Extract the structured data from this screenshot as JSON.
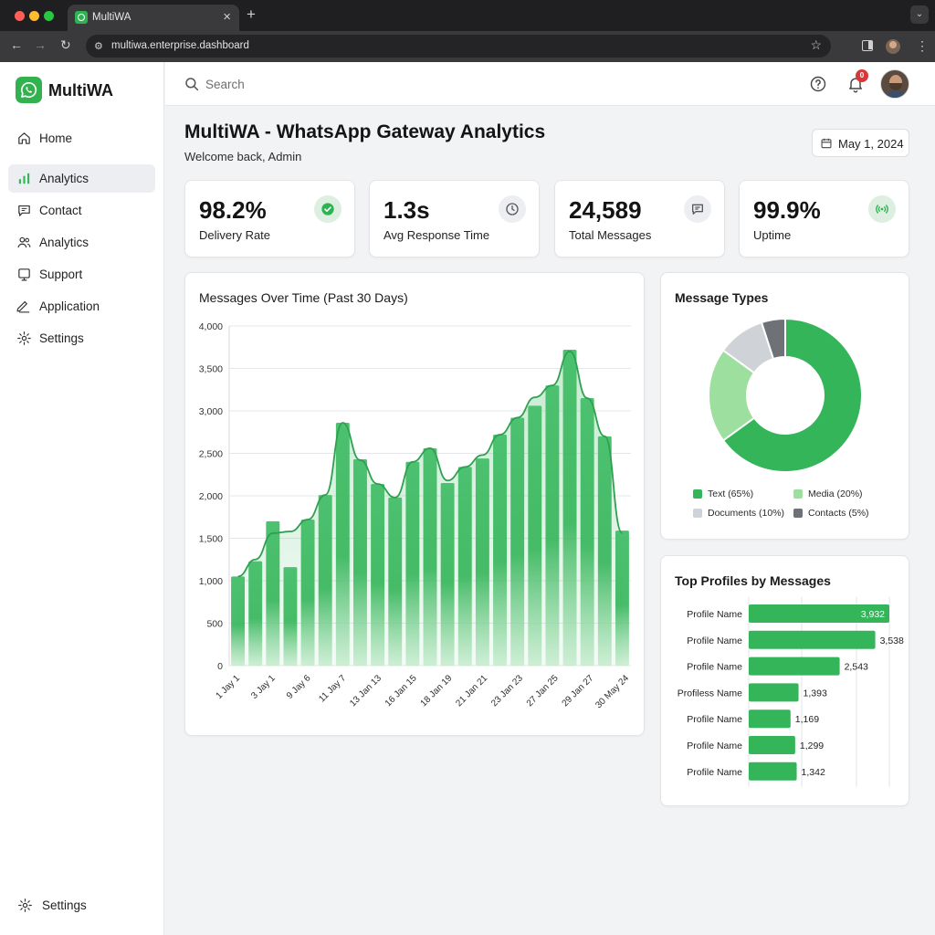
{
  "browser": {
    "tab_title": "MultiWA",
    "url": "multiwa.enterprise.dashboard"
  },
  "app": {
    "brand": "MultiWA"
  },
  "sidebar": {
    "items": [
      {
        "label": "Home",
        "icon": "home-icon",
        "active": false
      },
      {
        "label": "Analytics",
        "icon": "bar-chart-icon",
        "active": true
      },
      {
        "label": "Contact",
        "icon": "message-icon",
        "active": false
      },
      {
        "label": "Analytics",
        "icon": "users-icon",
        "active": false
      },
      {
        "label": "Support",
        "icon": "support-icon",
        "active": false
      },
      {
        "label": "Application",
        "icon": "pen-icon",
        "active": false
      },
      {
        "label": "Settings",
        "icon": "gear-icon",
        "active": false
      }
    ],
    "bottom_label": "Settings"
  },
  "topbar": {
    "search_placeholder": "Search",
    "notification_count": "0"
  },
  "header": {
    "title": "MultiWA - WhatsApp Gateway Analytics",
    "subtitle": "Welcome back, Admin",
    "date": "May 1, 2024"
  },
  "kpis": [
    {
      "value": "98.2%",
      "label": "Delivery Rate",
      "icon": "check-circle-icon",
      "icon_bg": "#dcefe0",
      "icon_color": "#2fb352"
    },
    {
      "value": "1.3s",
      "label": "Avg Response Time",
      "icon": "clock-icon",
      "icon_bg": "#eceef1",
      "icon_color": "#55585d"
    },
    {
      "value": "24,589",
      "label": "Total Messages",
      "icon": "message-icon",
      "icon_bg": "#eceef1",
      "icon_color": "#55585d"
    },
    {
      "value": "99.9%",
      "label": "Uptime",
      "icon": "signal-icon",
      "icon_bg": "#dcefe0",
      "icon_color": "#2fb352"
    }
  ],
  "messages_chart": {
    "title": "Messages Over Time (Past 30 Days)"
  },
  "message_types": {
    "title": "Message Types"
  },
  "top_profiles": {
    "title": "Top Profiles by Messages"
  },
  "colors": {
    "accent": "#34b559",
    "accent_light": "#9ddf9f",
    "grey_light": "#cfd2d6",
    "grey_dark": "#6e7175"
  },
  "chart_data": [
    {
      "type": "bar",
      "title": "Messages Over Time (Past 30 Days)",
      "ylim": [
        0,
        4000
      ],
      "yticks": [
        "0",
        "500",
        "1,000",
        "1,500",
        "2,000",
        "2,500",
        "3,000",
        "3,500",
        "4,000"
      ],
      "xtick_labels": [
        "1 Jay 1",
        "3 Jay 1",
        "9 Jay 6",
        "11 Jay 7",
        "13 Jan 13",
        "16 Jan 15",
        "18 Jan 19",
        "21 Jan 21",
        "23 Jan 23",
        "27 Jan 25",
        "29 Jan 27",
        "30 May 24"
      ],
      "values": [
        1050,
        1230,
        1700,
        1160,
        1720,
        2010,
        2860,
        2430,
        2140,
        1980,
        2400,
        2560,
        2150,
        2340,
        2440,
        2720,
        2920,
        3060,
        3300,
        3720,
        3150,
        2700,
        1590
      ],
      "trend": [
        1050,
        1250,
        1560,
        1580,
        1720,
        2010,
        2860,
        2420,
        2140,
        1980,
        2400,
        2560,
        2180,
        2340,
        2480,
        2720,
        2920,
        3160,
        3300,
        3700,
        3150,
        2700,
        1560
      ]
    },
    {
      "type": "pie",
      "title": "Message Types",
      "labels": [
        "Text (65%)",
        "Media (20%)",
        "Documents (10%)",
        "Contacts (5%)"
      ],
      "values": [
        65,
        20,
        10,
        5
      ],
      "colors": [
        "#34b559",
        "#9ddf9f",
        "#cfd2d6",
        "#6e7175"
      ]
    },
    {
      "type": "bar",
      "orientation": "horizontal",
      "title": "Top Profiles by Messages",
      "categories": [
        "Profile Name",
        "Profile Name",
        "Profile Name",
        "Profiless Name",
        "Profile Name",
        "Profile Name",
        "Profile Name"
      ],
      "values": [
        3932,
        3538,
        2543,
        1393,
        1169,
        1299,
        1342
      ],
      "value_labels": [
        "3,932",
        "3,538",
        "2,543",
        "1,393",
        "1,169",
        "1,299",
        "1,342"
      ]
    }
  ]
}
